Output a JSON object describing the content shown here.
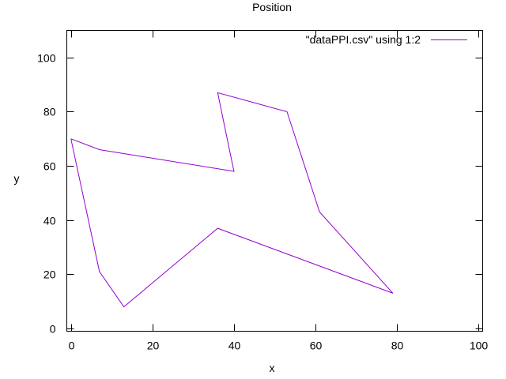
{
  "chart_data": {
    "type": "line",
    "title": "Position",
    "xlabel": "x",
    "ylabel": "y",
    "xlim": [
      -1,
      101
    ],
    "ylim": [
      -1,
      110
    ],
    "xticks": [
      0,
      20,
      40,
      60,
      80,
      100
    ],
    "yticks": [
      0,
      20,
      40,
      60,
      80,
      100
    ],
    "grid": false,
    "legend_position": "top-right",
    "series": [
      {
        "name": "\"dataPPI.csv\" using 1:2",
        "color": "#9400d3",
        "x": [
          0,
          7,
          40,
          36,
          53,
          61,
          79,
          36,
          13,
          7,
          0
        ],
        "y": [
          70,
          66,
          58,
          87,
          80,
          43,
          13,
          37,
          8,
          21,
          70
        ]
      }
    ]
  }
}
